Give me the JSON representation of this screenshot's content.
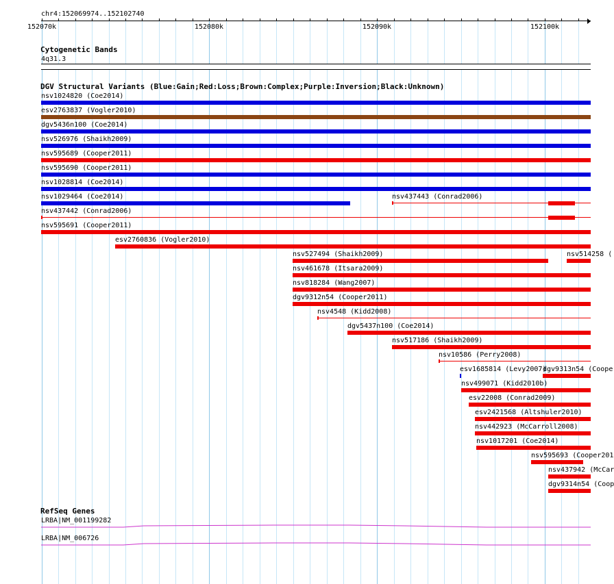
{
  "header": {
    "location": "chr4:152069974..152102740",
    "ruler": {
      "major_ticks": [
        "152070k",
        "152080k",
        "152090k",
        "152100k"
      ]
    }
  },
  "cyto": {
    "title": "Cytogenetic Bands",
    "band": "4q31.3"
  },
  "dgv": {
    "title": "DGV Structural Variants (Blue:Gain;Red:Loss;Brown:Complex;Purple:Inversion;Black:Unknown)",
    "colors": {
      "gain": "#0000dd",
      "loss": "#ee0000",
      "complex": "#8b4513"
    },
    "features": [
      {
        "label": "nsv1024820 (Coe2014)",
        "type": "gain",
        "row": 0,
        "start": 152069974,
        "end": 152102740,
        "style": "bar"
      },
      {
        "label": "esv2763837 (Vogler2010)",
        "type": "complex",
        "row": 1,
        "start": 152069974,
        "end": 152102740,
        "style": "bar"
      },
      {
        "label": "dgv5436n100 (Coe2014)",
        "type": "gain",
        "row": 2,
        "start": 152069974,
        "end": 152102740,
        "style": "bar"
      },
      {
        "label": "nsv526976 (Shaikh2009)",
        "type": "gain",
        "row": 3,
        "start": 152069974,
        "end": 152102740,
        "style": "bar"
      },
      {
        "label": "nsv595689 (Cooper2011)",
        "type": "loss",
        "row": 4,
        "start": 152069974,
        "end": 152102740,
        "style": "bar"
      },
      {
        "label": "nsv595690 (Cooper2011)",
        "type": "gain",
        "row": 5,
        "start": 152069974,
        "end": 152102740,
        "style": "bar"
      },
      {
        "label": "nsv1028814 (Coe2014)",
        "type": "gain",
        "row": 6,
        "start": 152069974,
        "end": 152102740,
        "style": "bar"
      },
      {
        "label": "nsv1029464 (Coe2014)",
        "type": "gain",
        "row": 7,
        "start": 152069974,
        "end": 152088400,
        "style": "bar"
      },
      {
        "label": "nsv437443 (Conrad2006)",
        "type": "loss",
        "row": 7,
        "start": 152090900,
        "end": 152102740,
        "style": "line",
        "blocks": [
          {
            "start": 152100200,
            "end": 152101800
          }
        ]
      },
      {
        "label": "nsv437442 (Conrad2006)",
        "type": "loss",
        "row": 8,
        "start": 152069974,
        "end": 152102740,
        "style": "line",
        "blocks": [
          {
            "start": 152100200,
            "end": 152101800
          }
        ]
      },
      {
        "label": "nsv595691 (Cooper2011)",
        "type": "loss",
        "row": 9,
        "start": 152069974,
        "end": 152102740,
        "style": "bar"
      },
      {
        "label": "esv2760836 (Vogler2010)",
        "type": "loss",
        "row": 10,
        "start": 152074400,
        "end": 152102740,
        "style": "bar"
      },
      {
        "label": "nsv527494 (Shaikh2009)",
        "type": "loss",
        "row": 11,
        "start": 152084950,
        "end": 152100200,
        "style": "bar"
      },
      {
        "label": "nsv514258 (",
        "type": "loss",
        "row": 11,
        "start": 152101300,
        "end": 152102740,
        "style": "bar"
      },
      {
        "label": "nsv461678 (Itsara2009)",
        "type": "loss",
        "row": 12,
        "start": 152084950,
        "end": 152102740,
        "style": "bar"
      },
      {
        "label": "nsv818284 (Wang2007)",
        "type": "loss",
        "row": 13,
        "start": 152084950,
        "end": 152102740,
        "style": "bar"
      },
      {
        "label": "dgv9312n54 (Cooper2011)",
        "type": "loss",
        "row": 14,
        "start": 152084950,
        "end": 152102740,
        "style": "bar"
      },
      {
        "label": "nsv4548 (Kidd2008)",
        "type": "loss",
        "row": 15,
        "start": 152086450,
        "end": 152102740,
        "style": "line"
      },
      {
        "label": "dgv5437n100 (Coe2014)",
        "type": "loss",
        "row": 16,
        "start": 152088250,
        "end": 152102740,
        "style": "bar"
      },
      {
        "label": "nsv517186 (Shaikh2009)",
        "type": "loss",
        "row": 17,
        "start": 152090900,
        "end": 152102740,
        "style": "bar"
      },
      {
        "label": "nsv10586 (Perry2008)",
        "type": "loss",
        "row": 18,
        "start": 152093650,
        "end": 152102740,
        "style": "line"
      },
      {
        "label": "esv1685814 (Levy2007)",
        "type": "gain",
        "row": 19,
        "start": 152094950,
        "end": 152095050,
        "style": "bar"
      },
      {
        "label": "dgv9313n54 (Coope",
        "type": "loss",
        "row": 19,
        "start": 152099900,
        "end": 152102740,
        "style": "bar"
      },
      {
        "label": "nsv499071 (Kidd2010b)",
        "type": "loss",
        "row": 20,
        "start": 152095000,
        "end": 152102740,
        "style": "bar"
      },
      {
        "label": "esv22008 (Conrad2009)",
        "type": "loss",
        "row": 21,
        "start": 152095450,
        "end": 152102740,
        "style": "bar"
      },
      {
        "label": "esv2421568 (Altshuler2010)",
        "type": "loss",
        "row": 22,
        "start": 152095850,
        "end": 152102740,
        "style": "bar"
      },
      {
        "label": "nsv442923 (McCarroll2008)",
        "type": "loss",
        "row": 23,
        "start": 152095850,
        "end": 152102740,
        "style": "bar"
      },
      {
        "label": "nsv1017201 (Coe2014)",
        "type": "loss",
        "row": 24,
        "start": 152095900,
        "end": 152102740,
        "style": "bar"
      },
      {
        "label": "nsv595693 (Cooper201",
        "type": "loss",
        "row": 25,
        "start": 152099200,
        "end": 152102300,
        "style": "bar"
      },
      {
        "label": "nsv437942 (McCar",
        "type": "loss",
        "row": 26,
        "start": 152100200,
        "end": 152102740,
        "style": "bar"
      },
      {
        "label": "dgv9314n54 (Coop",
        "type": "loss",
        "row": 27,
        "start": 152100200,
        "end": 152102740,
        "style": "bar"
      }
    ]
  },
  "refseq": {
    "title": "RefSeq Genes",
    "color": "#cc33cc",
    "genes": [
      {
        "label": "LRBA|NM_001199282"
      },
      {
        "label": "LRBA|NM_006726"
      }
    ]
  }
}
